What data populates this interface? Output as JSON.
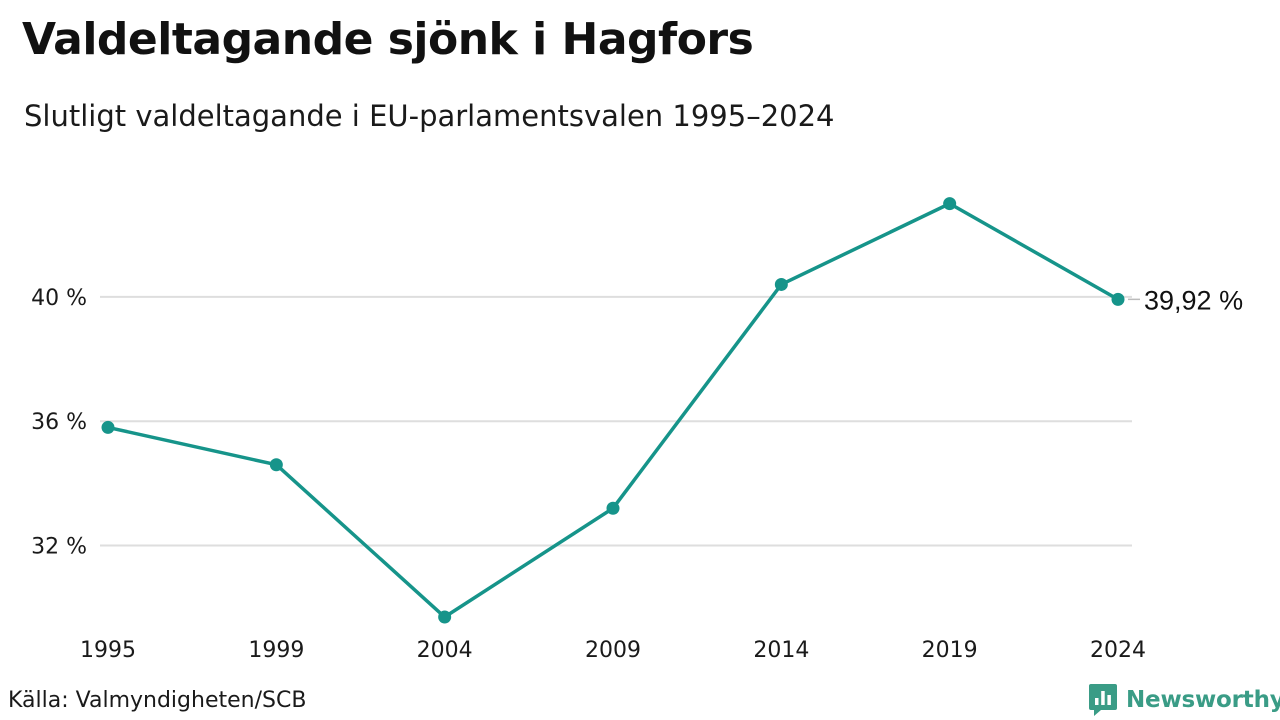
{
  "title": "Valdeltagande sjönk i Hagfors",
  "subtitle": "Slutligt valdeltagande i EU-parlamentsvalen 1995–2024",
  "source": "Källa: Valmyndigheten/SCB",
  "brand": {
    "name": "Newsworthy",
    "logo_icon": "bar-chart-speech-bubble-icon",
    "color": "#3a9c86"
  },
  "chart_data": {
    "type": "line",
    "x": [
      "1995",
      "1999",
      "2004",
      "2009",
      "2014",
      "2019",
      "2024"
    ],
    "series": [
      {
        "values": [
          35.8,
          34.6,
          29.7,
          33.2,
          40.4,
          43.0,
          39.92
        ],
        "color": "#16948a"
      }
    ],
    "yticks": [
      {
        "value": 32,
        "label": "32 %"
      },
      {
        "value": 36,
        "label": "36 %"
      },
      {
        "value": 40,
        "label": "40 %"
      }
    ],
    "ylim": [
      28.8,
      44.5
    ],
    "grid": true,
    "end_label": "39,92 %",
    "xlabel": "",
    "ylabel": ""
  }
}
